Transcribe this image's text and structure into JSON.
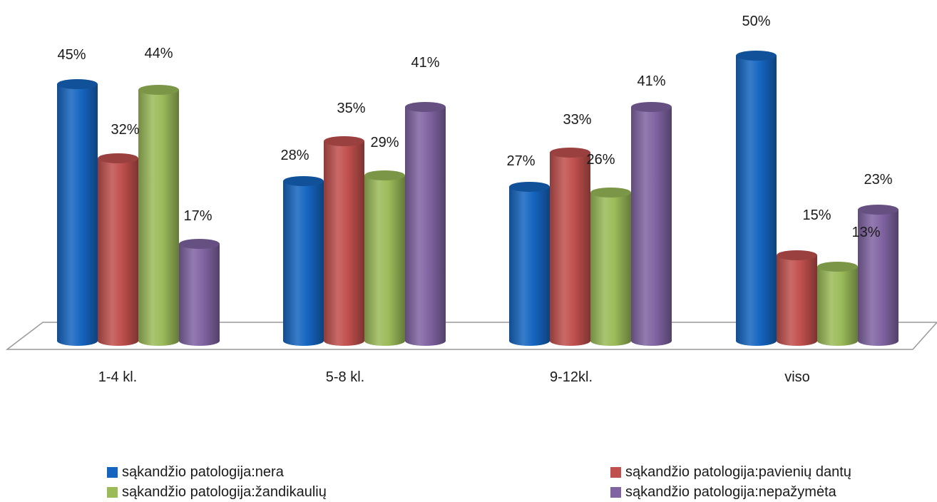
{
  "chart_data": {
    "type": "bar",
    "title": "",
    "xlabel": "",
    "ylabel": "",
    "ylim": [
      0,
      50
    ],
    "categories": [
      "1-4 kl.",
      "5-8 kl.",
      "9-12kl.",
      "viso"
    ],
    "series": [
      {
        "name": "sąkandžio patologija:nera",
        "values": [
          45,
          28,
          27,
          50
        ],
        "labels": [
          "45%",
          "28%",
          "27%",
          "50%"
        ],
        "color": "#1565c0"
      },
      {
        "name": "sąkandžio patologija:pavienių dantų",
        "values": [
          32,
          35,
          33,
          15
        ],
        "labels": [
          "32%",
          "35%",
          "33%",
          "15%"
        ],
        "color": "#c0504d"
      },
      {
        "name": "sąkandžio patologija:žandikaulių",
        "values": [
          44,
          29,
          26,
          13
        ],
        "labels": [
          "44%",
          "29%",
          "26%",
          "13%"
        ],
        "color": "#9bbb59"
      },
      {
        "name": "sąkandžio patologija:nepažymėta",
        "values": [
          17,
          41,
          41,
          23
        ],
        "labels": [
          "17%",
          "41%",
          "41%",
          "23%"
        ],
        "color": "#8064a2"
      }
    ],
    "grid": false,
    "legend_position": "bottom",
    "style": "3d-cylinder"
  }
}
